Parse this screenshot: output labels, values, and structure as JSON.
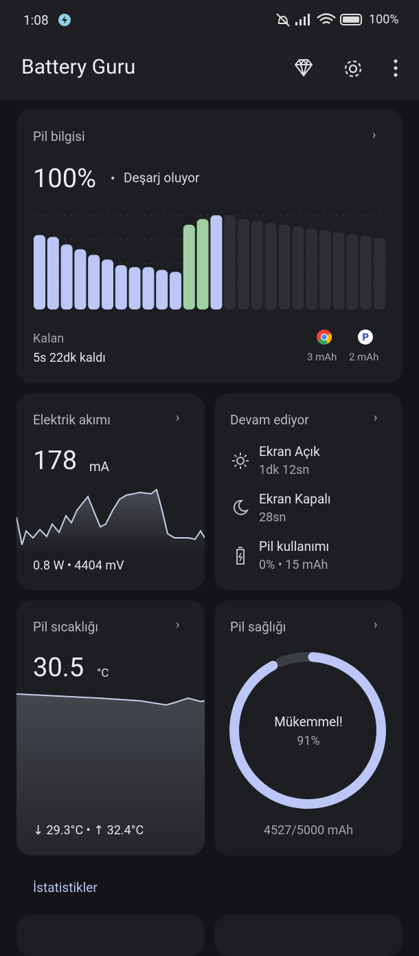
{
  "status_bar": {
    "time": "1:08",
    "battery": "100%"
  },
  "app_bar": {
    "title": "Battery Guru"
  },
  "battery_card": {
    "title": "Pil bilgisi",
    "level": "100%",
    "state": "Deşarj oluyor",
    "bars": {
      "values": [
        79,
        77,
        69,
        64,
        58,
        53,
        47,
        45,
        45,
        42,
        40,
        90,
        96,
        100,
        100,
        96,
        94,
        92,
        90,
        88,
        86,
        84,
        82,
        80,
        78,
        76
      ],
      "colors": [
        "#bcc7f7",
        "#bcc7f7",
        "#bcc7f7",
        "#bcc7f7",
        "#bcc7f7",
        "#bcc7f7",
        "#bcc7f7",
        "#bcc7f7",
        "#bcc7f7",
        "#bcc7f7",
        "#bcc7f7",
        "#9fd0a3",
        "#9fd0a3",
        "#bcc7f7",
        "#2e2f33",
        "#2e2f33",
        "#2e2f33",
        "#2e2f33",
        "#2e2f33",
        "#2e2f33",
        "#2e2f33",
        "#2e2f33",
        "#2e2f33",
        "#2e2f33",
        "#2e2f33",
        "#2e2f33"
      ]
    },
    "remaining_label": "Kalan",
    "remaining": "5s 22dk kaldı",
    "apps": [
      {
        "usage": "3 mAh"
      },
      {
        "usage": "2 mAh"
      }
    ]
  },
  "current_card": {
    "title": "Elektrik akımı",
    "value": "178",
    "unit": "mA",
    "footer": "0.8 W • 4404 mV"
  },
  "ongoing_card": {
    "title": "Devam ediyor",
    "items": [
      {
        "label": "Ekran Açık",
        "value": "1dk 12sn"
      },
      {
        "label": "Ekran Kapalı",
        "value": "28sn"
      },
      {
        "label": "Pil kullanımı",
        "value": "0% • 15 mAh"
      }
    ]
  },
  "temperature_card": {
    "title": "Pil sıcaklığı",
    "value": "30.5",
    "unit": "°C",
    "footer": "↓ 29.3°C • ↑ 32.4°C"
  },
  "health_card": {
    "title": "Pil sağlığı",
    "status": "Mükemmel!",
    "percent": {
      "value": 91,
      "label": "91%"
    },
    "capacity": "4527/5000 mAh"
  },
  "section": {
    "title": "İstatistikler"
  }
}
